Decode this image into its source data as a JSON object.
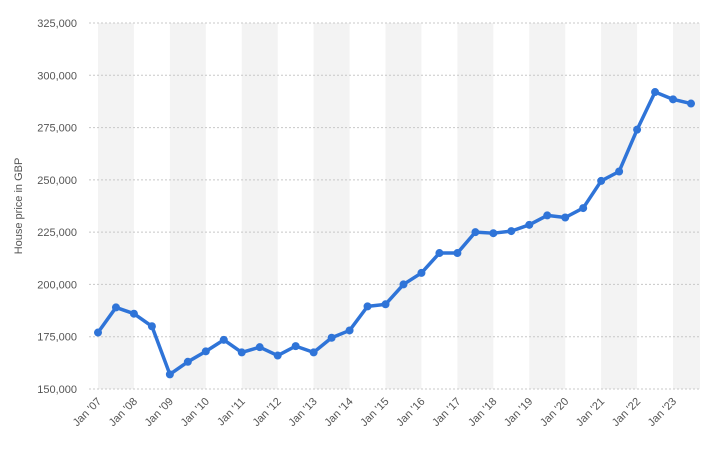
{
  "chart_data": {
    "type": "line",
    "y_label": "House price in GBP",
    "categories": [
      "Jan '07",
      null,
      "Jan '08",
      null,
      "Jan '09",
      null,
      "Jan '10",
      null,
      "Jan '11",
      null,
      "Jan '12",
      null,
      "Jan '13",
      null,
      "Jan '14",
      null,
      "Jan '15",
      null,
      "Jan '16",
      null,
      "Jan '17",
      null,
      "Jan '18",
      null,
      "Jan '19",
      null,
      "Jan '20",
      null,
      "Jan '21",
      null,
      "Jan '22",
      null,
      "Jan '23",
      null
    ],
    "series": [
      {
        "name": "House price",
        "color": "#2f74d8",
        "values": [
          177000,
          189000,
          186000,
          180000,
          157000,
          163000,
          168000,
          173500,
          167500,
          170000,
          166000,
          170500,
          167500,
          174500,
          178000,
          189500,
          190500,
          200000,
          205500,
          215000,
          215000,
          225000,
          224500,
          225500,
          228500,
          233000,
          232000,
          236500,
          249500,
          254000,
          274000,
          292000,
          288500,
          286500
        ]
      }
    ],
    "ylim": [
      150000,
      325000
    ],
    "yticks": [
      {
        "value": 150000,
        "label": "150,000"
      },
      {
        "value": 175000,
        "label": "175,000"
      },
      {
        "value": 200000,
        "label": "200,000"
      },
      {
        "value": 225000,
        "label": "225,000"
      },
      {
        "value": 250000,
        "label": "250,000"
      },
      {
        "value": 275000,
        "label": "275,000"
      },
      {
        "value": 300000,
        "label": "300,000"
      },
      {
        "value": 325000,
        "label": "325,000"
      }
    ],
    "grid": true
  }
}
